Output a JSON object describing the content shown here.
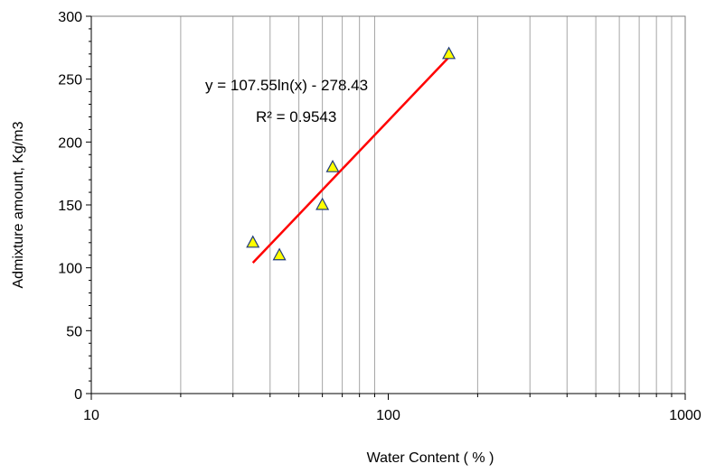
{
  "chart_data": {
    "type": "scatter",
    "xlabel": "Water Content ( % )",
    "ylabel": "Admixture amount, Kg/m3",
    "x_scale": "log",
    "xlim": [
      10,
      1000
    ],
    "ylim": [
      0,
      300
    ],
    "x_ticks": [
      10,
      100,
      1000
    ],
    "x_tick_labels": [
      "10",
      "100",
      "1000"
    ],
    "y_ticks": [
      0,
      50,
      100,
      150,
      200,
      250,
      300
    ],
    "y_tick_labels": [
      "0",
      "50",
      "100",
      "150",
      "200",
      "250",
      "300"
    ],
    "grid": "vertical minor lines on log x-axis",
    "series": [
      {
        "marker": "triangle",
        "color": "#ffff00",
        "edge_color": "#1f3a7a",
        "points": [
          {
            "x": 35,
            "y": 120
          },
          {
            "x": 43,
            "y": 110
          },
          {
            "x": 60,
            "y": 150
          },
          {
            "x": 65,
            "y": 180
          },
          {
            "x": 160,
            "y": 270
          }
        ]
      }
    ],
    "trendline": {
      "type": "logarithmic",
      "a": 107.55,
      "b": -278.43,
      "x_range": [
        35,
        160
      ],
      "color": "#ff0000",
      "equation_label": "y = 107.55ln(x) - 278.43",
      "r2_label": "R² = 0.9543"
    }
  }
}
